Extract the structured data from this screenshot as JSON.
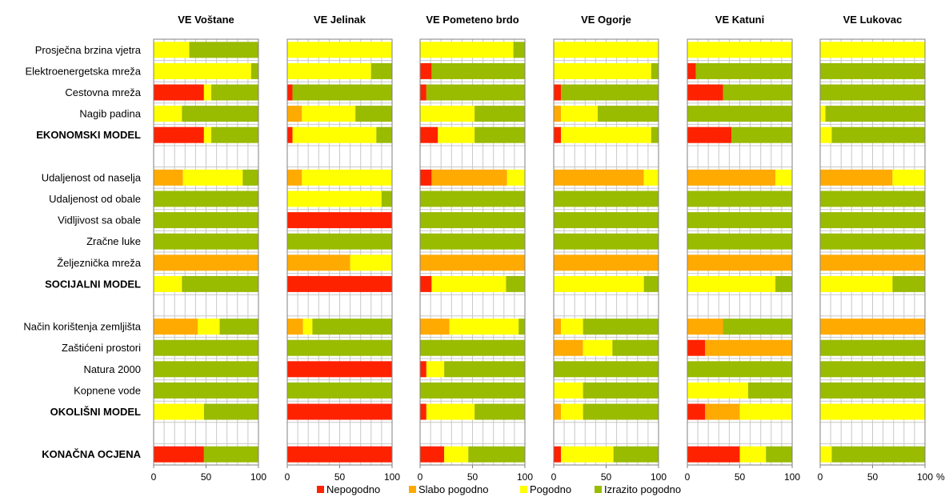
{
  "chart_data": {
    "type": "bar",
    "orientation": "horizontal",
    "stacked": true,
    "grid": true,
    "legend_position": "bottom",
    "xlim": [
      0,
      100
    ],
    "x_ticks": [
      "0",
      "50",
      "100"
    ],
    "x_unit": "%",
    "rows": [
      {
        "label": "Prosječna brzina vjetra",
        "bold": false
      },
      {
        "label": "Elektroenergetska mreža",
        "bold": false
      },
      {
        "label": "Cestovna mreža",
        "bold": false
      },
      {
        "label": "Nagib padina",
        "bold": false
      },
      {
        "label": "EKONOMSKI MODEL",
        "bold": true
      },
      {
        "label": "",
        "bold": false
      },
      {
        "label": "Udaljenost od naselja",
        "bold": false
      },
      {
        "label": "Udaljenost od obale",
        "bold": false
      },
      {
        "label": "Vidljivost sa obale",
        "bold": false
      },
      {
        "label": "Zračne luke",
        "bold": false
      },
      {
        "label": "Željeznička mreža",
        "bold": false
      },
      {
        "label": "SOCIJALNI MODEL",
        "bold": true
      },
      {
        "label": "",
        "bold": false
      },
      {
        "label": "Način korištenja zemljišta",
        "bold": false
      },
      {
        "label": "Zaštićeni prostori",
        "bold": false
      },
      {
        "label": "Natura 2000",
        "bold": false
      },
      {
        "label": "Kopnene vode",
        "bold": false
      },
      {
        "label": "OKOLIŠNI MODEL",
        "bold": true
      },
      {
        "label": "",
        "bold": false
      },
      {
        "label": "KONAČNA OCJENA",
        "bold": true
      }
    ],
    "legend": [
      {
        "name": "Nepogodno",
        "color": "#ff2200"
      },
      {
        "name": "Slabo pogodno",
        "color": "#ffaa00"
      },
      {
        "name": "Pogodno",
        "color": "#ffff00"
      },
      {
        "name": "Izrazito pogodno",
        "color": "#99bb00"
      }
    ],
    "panels": [
      {
        "title": "VE Voštane",
        "values": [
          [
            0,
            0,
            34,
            66
          ],
          [
            0,
            0,
            93,
            7
          ],
          [
            48,
            0,
            7,
            45
          ],
          [
            0,
            0,
            27,
            73
          ],
          [
            48,
            0,
            7,
            45
          ],
          null,
          [
            0,
            28,
            57,
            15
          ],
          [
            0,
            0,
            0,
            100
          ],
          [
            0,
            0,
            0,
            100
          ],
          [
            0,
            0,
            0,
            100
          ],
          [
            0,
            100,
            0,
            0
          ],
          [
            0,
            0,
            27,
            73
          ],
          null,
          [
            0,
            42,
            21,
            37
          ],
          [
            0,
            0,
            0,
            100
          ],
          [
            0,
            0,
            0,
            100
          ],
          [
            0,
            0,
            0,
            100
          ],
          [
            0,
            0,
            48,
            52
          ],
          null,
          [
            48,
            0,
            0,
            52
          ]
        ]
      },
      {
        "title": "VE Jelinak",
        "values": [
          [
            0,
            0,
            100,
            0
          ],
          [
            0,
            0,
            80,
            20
          ],
          [
            5,
            0,
            0,
            95
          ],
          [
            0,
            14,
            51,
            35
          ],
          [
            5,
            0,
            80,
            15
          ],
          null,
          [
            0,
            14,
            86,
            0
          ],
          [
            0,
            0,
            90,
            10
          ],
          [
            100,
            0,
            0,
            0
          ],
          [
            0,
            0,
            0,
            100
          ],
          [
            0,
            60,
            40,
            0
          ],
          [
            100,
            0,
            0,
            0
          ],
          null,
          [
            0,
            15,
            9,
            76
          ],
          [
            0,
            0,
            0,
            100
          ],
          [
            100,
            0,
            0,
            0
          ],
          [
            0,
            0,
            0,
            100
          ],
          [
            100,
            0,
            0,
            0
          ],
          null,
          [
            100,
            0,
            0,
            0
          ]
        ]
      },
      {
        "title": "VE Pometeno brdo",
        "values": [
          [
            0,
            0,
            89,
            11
          ],
          [
            11,
            0,
            0,
            89
          ],
          [
            6,
            0,
            0,
            94
          ],
          [
            0,
            0,
            52,
            48
          ],
          [
            17,
            0,
            35,
            48
          ],
          null,
          [
            11,
            72,
            17,
            0
          ],
          [
            0,
            0,
            0,
            100
          ],
          [
            0,
            0,
            0,
            100
          ],
          [
            0,
            0,
            0,
            100
          ],
          [
            0,
            100,
            0,
            0
          ],
          [
            11,
            0,
            71,
            18
          ],
          null,
          [
            0,
            28,
            66,
            6
          ],
          [
            0,
            0,
            0,
            100
          ],
          [
            6,
            0,
            17,
            77
          ],
          [
            0,
            0,
            0,
            100
          ],
          [
            6,
            0,
            46,
            48
          ],
          null,
          [
            23,
            0,
            23,
            54
          ]
        ]
      },
      {
        "title": "VE Ogorje",
        "values": [
          [
            0,
            0,
            100,
            0
          ],
          [
            0,
            0,
            93,
            7
          ],
          [
            7,
            0,
            0,
            93
          ],
          [
            0,
            7,
            35,
            58
          ],
          [
            7,
            0,
            86,
            7
          ],
          null,
          [
            0,
            86,
            14,
            0
          ],
          [
            0,
            0,
            0,
            100
          ],
          [
            0,
            0,
            0,
            100
          ],
          [
            0,
            0,
            0,
            100
          ],
          [
            0,
            100,
            0,
            0
          ],
          [
            0,
            0,
            86,
            14
          ],
          null,
          [
            0,
            7,
            21,
            72
          ],
          [
            0,
            28,
            28,
            44
          ],
          [
            0,
            0,
            0,
            100
          ],
          [
            0,
            0,
            28,
            72
          ],
          [
            0,
            7,
            21,
            72
          ],
          null,
          [
            7,
            0,
            50,
            43
          ]
        ]
      },
      {
        "title": "VE Katuni",
        "values": [
          [
            0,
            0,
            100,
            0
          ],
          [
            8,
            0,
            0,
            92
          ],
          [
            34,
            0,
            0,
            66
          ],
          [
            0,
            0,
            0,
            100
          ],
          [
            42,
            0,
            0,
            58
          ],
          null,
          [
            0,
            84,
            16,
            0
          ],
          [
            0,
            0,
            0,
            100
          ],
          [
            0,
            0,
            0,
            100
          ],
          [
            0,
            0,
            0,
            100
          ],
          [
            0,
            100,
            0,
            0
          ],
          [
            0,
            0,
            84,
            16
          ],
          null,
          [
            0,
            34,
            0,
            66
          ],
          [
            17,
            83,
            0,
            0
          ],
          [
            0,
            0,
            0,
            100
          ],
          [
            0,
            0,
            58,
            42
          ],
          [
            17,
            33,
            50,
            0
          ],
          null,
          [
            50,
            0,
            25,
            25
          ]
        ]
      },
      {
        "title": "VE Lukovac",
        "values": [
          [
            0,
            0,
            100,
            0
          ],
          [
            0,
            0,
            0,
            100
          ],
          [
            0,
            0,
            0,
            100
          ],
          [
            0,
            0,
            5,
            95
          ],
          [
            0,
            0,
            11,
            89
          ],
          null,
          [
            0,
            69,
            31,
            0
          ],
          [
            0,
            0,
            0,
            100
          ],
          [
            0,
            0,
            0,
            100
          ],
          [
            0,
            0,
            0,
            100
          ],
          [
            0,
            100,
            0,
            0
          ],
          [
            0,
            0,
            69,
            31
          ],
          null,
          [
            0,
            100,
            0,
            0
          ],
          [
            0,
            0,
            0,
            100
          ],
          [
            0,
            0,
            0,
            100
          ],
          [
            0,
            0,
            0,
            100
          ],
          [
            0,
            0,
            100,
            0
          ],
          null,
          [
            0,
            0,
            11,
            89
          ]
        ]
      }
    ]
  }
}
